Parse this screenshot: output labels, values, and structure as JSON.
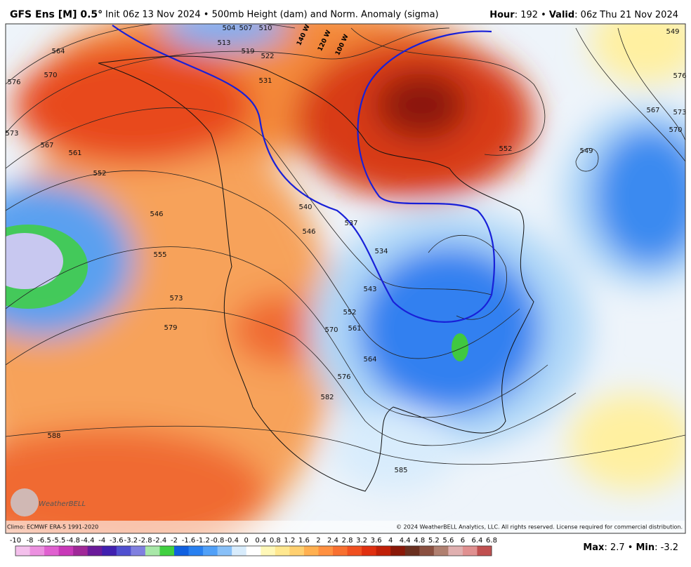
{
  "header": {
    "model": "GFS Ens [M] 0.5°",
    "description": "Init 06z 13 Nov 2024 • 500mb Height (dam) and Norm. Anomaly (sigma)",
    "hour_label": "Hour",
    "hour": ": 192 •",
    "valid_label": "Valid",
    "valid": ": 06z Thu 21 Nov 2024"
  },
  "map": {
    "contour_labels": [
      504,
      507,
      510,
      513,
      519,
      522,
      531,
      564,
      570,
      576,
      573,
      567,
      561,
      552,
      546,
      555,
      573,
      579,
      588,
      585,
      540,
      546,
      537,
      534,
      543,
      552,
      561,
      570,
      564,
      576,
      582,
      549,
      552,
      567,
      570,
      573,
      576,
      549
    ],
    "longitude_labels": [
      "140 W",
      "120 W",
      "100 W"
    ],
    "logo": "WeatherBELL",
    "climo": "Climo: ECMWF ERA-5 1991-2020",
    "credit": "© 2024 WeatherBELL Analytics, LLC. All rights reserved. License required for commercial distribution."
  },
  "colorbar": {
    "ticks": [
      -10,
      -8,
      -6.5,
      -5.5,
      -4.8,
      -4.4,
      -4,
      -3.6,
      -3.2,
      -2.8,
      -2.4,
      -2,
      -1.6,
      -1.2,
      -0.8,
      -0.4,
      0,
      0.4,
      0.8,
      1.2,
      1.6,
      2,
      2.4,
      2.8,
      3.2,
      3.6,
      4,
      4.4,
      4.8,
      5.2,
      5.6,
      6,
      6.4,
      6.8
    ],
    "colors": [
      "#f4c0ec",
      "#ec90e0",
      "#e060d0",
      "#c838b8",
      "#a02898",
      "#6a1a9a",
      "#4020b0",
      "#5050d0",
      "#8080e0",
      "#a8e8a8",
      "#40d040",
      "#1060e0",
      "#2880f0",
      "#50a0f8",
      "#88c0f8",
      "#d8ecfc",
      "#ffffff",
      "#fff8b8",
      "#ffe890",
      "#ffd070",
      "#ffb050",
      "#ff9040",
      "#f87030",
      "#f05020",
      "#e03010",
      "#c02008",
      "#8a1808",
      "#6a3020",
      "#8a5040",
      "#b08070",
      "#e0b0b0",
      "#e09090",
      "#c05050"
    ]
  },
  "stats": {
    "max_label": "Max",
    "max": ": 2.7 •",
    "min_label": "Min",
    "min": ": -3.2"
  }
}
